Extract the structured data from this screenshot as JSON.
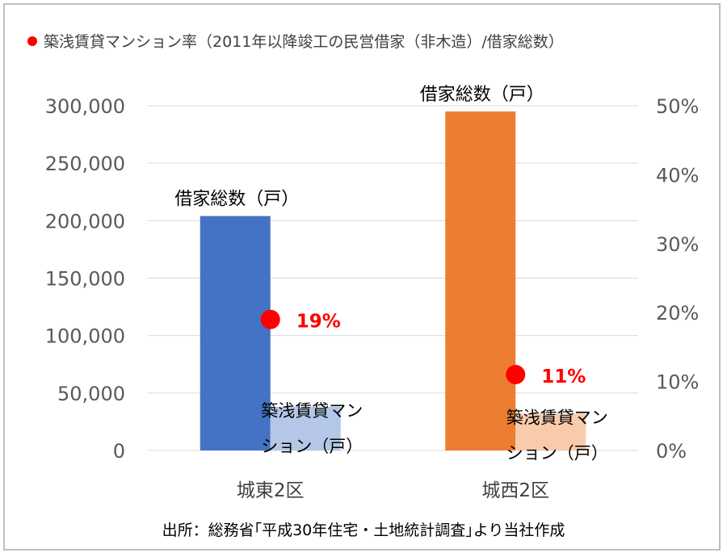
{
  "legend": {
    "label": "築浅賃貸マンション率（2011年以降竣工の民営借家（非木造）/借家総数）",
    "color": "#ff0000"
  },
  "source": "出所：総務省｢平成30年住宅・土地統計調査｣より当社作成",
  "chart_data": {
    "type": "bar",
    "categories": [
      "城東2区",
      "城西2区"
    ],
    "series": [
      {
        "name": "借家総数（戸）",
        "axis": "left",
        "values": [
          204000,
          295000
        ],
        "colors": [
          "#4472c4",
          "#ed7d31"
        ],
        "labels": [
          "借家総数（戸）",
          "借家総数（戸）"
        ]
      },
      {
        "name": "築浅賃貸マンション（戸）",
        "axis": "left",
        "values": [
          38000,
          32000
        ],
        "colors": [
          "#b4c7e7",
          "#f8cbad"
        ],
        "labels": [
          [
            "築浅賃貸マン",
            "ション（戸）"
          ],
          [
            "築浅賃貸マン",
            "ション（戸）"
          ]
        ]
      },
      {
        "name": "築浅賃貸マンション率",
        "axis": "right",
        "type": "scatter",
        "values": [
          0.19,
          0.11
        ],
        "labels": [
          "19%",
          "11%"
        ],
        "color": "#ff0000"
      }
    ],
    "y_left": {
      "min": 0,
      "max": 300000,
      "ticks": [
        0,
        50000,
        100000,
        150000,
        200000,
        250000,
        300000
      ],
      "tick_labels": [
        "0",
        "50,000",
        "100,000",
        "150,000",
        "200,000",
        "250,000",
        "300,000"
      ]
    },
    "y_right": {
      "min": 0,
      "max": 0.5,
      "ticks": [
        0,
        0.1,
        0.2,
        0.3,
        0.4,
        0.5
      ],
      "tick_labels": [
        "0%",
        "10%",
        "20%",
        "30%",
        "40%",
        "50%"
      ]
    },
    "grid": true,
    "legend_position": "top-left"
  }
}
